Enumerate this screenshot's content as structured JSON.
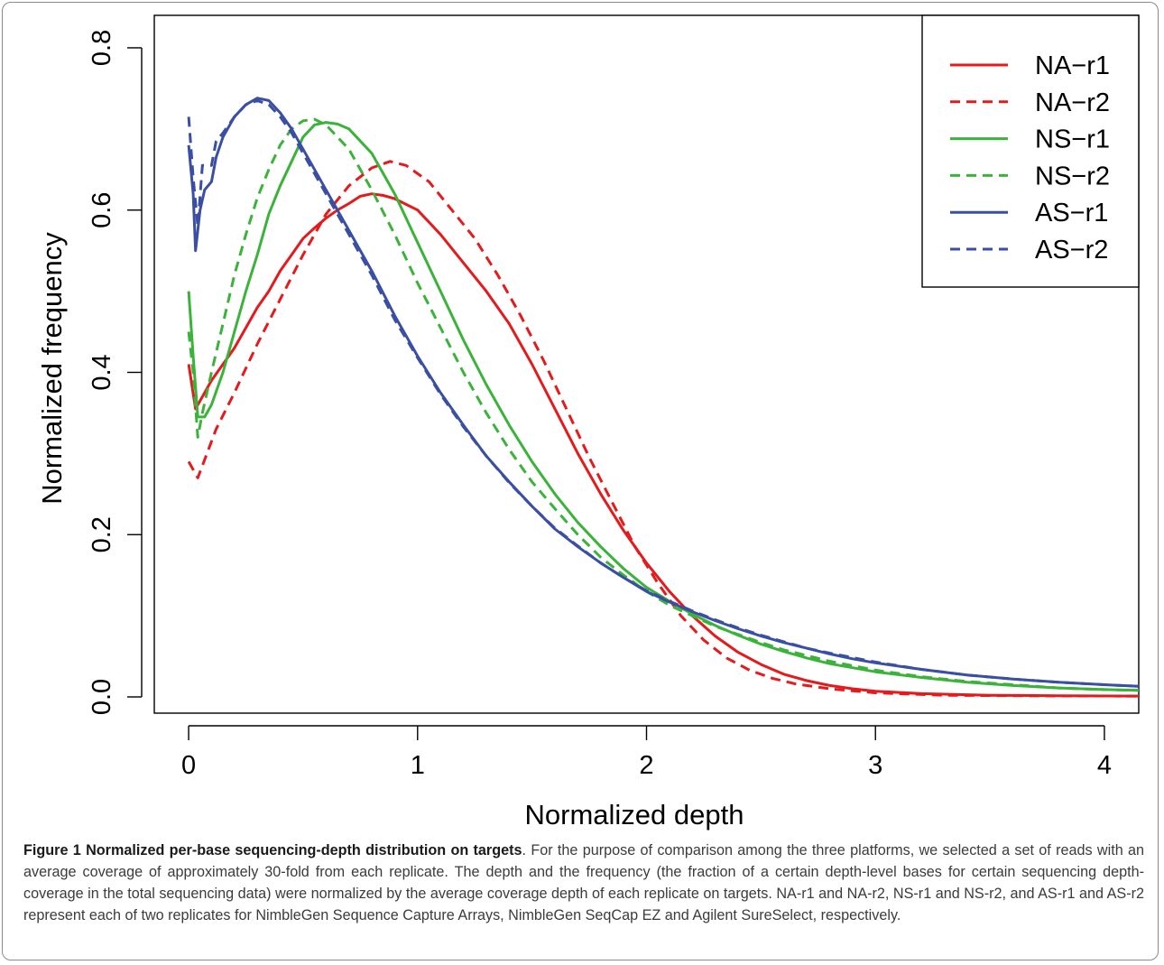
{
  "chart_data": {
    "type": "line",
    "xlabel": "Normalized depth",
    "ylabel": "Normalized frequency",
    "xlim": [
      -0.15,
      4.15
    ],
    "ylim": [
      -0.02,
      0.84
    ],
    "x_ticks": [
      0,
      1,
      2,
      3,
      4
    ],
    "x_tick_labels": [
      "0",
      "1",
      "2",
      "3",
      "4"
    ],
    "y_ticks": [
      0.0,
      0.2,
      0.4,
      0.6,
      0.8
    ],
    "y_tick_labels": [
      "0.0",
      "0.2",
      "0.4",
      "0.6",
      "0.8"
    ],
    "grid": false,
    "legend_position": "top-right",
    "series": [
      {
        "name": "NA−r1",
        "color": "#e41a1c",
        "dash": "solid",
        "points": [
          [
            0,
            0.41
          ],
          [
            0.03,
            0.355
          ],
          [
            0.06,
            0.37
          ],
          [
            0.1,
            0.39
          ],
          [
            0.15,
            0.41
          ],
          [
            0.2,
            0.43
          ],
          [
            0.25,
            0.455
          ],
          [
            0.3,
            0.48
          ],
          [
            0.35,
            0.5
          ],
          [
            0.4,
            0.525
          ],
          [
            0.45,
            0.545
          ],
          [
            0.5,
            0.565
          ],
          [
            0.55,
            0.578
          ],
          [
            0.6,
            0.59
          ],
          [
            0.65,
            0.6
          ],
          [
            0.7,
            0.608
          ],
          [
            0.75,
            0.617
          ],
          [
            0.8,
            0.62
          ],
          [
            0.85,
            0.618
          ],
          [
            0.9,
            0.614
          ],
          [
            1.0,
            0.6
          ],
          [
            1.1,
            0.57
          ],
          [
            1.2,
            0.535
          ],
          [
            1.3,
            0.5
          ],
          [
            1.4,
            0.46
          ],
          [
            1.5,
            0.41
          ],
          [
            1.6,
            0.355
          ],
          [
            1.7,
            0.3
          ],
          [
            1.8,
            0.25
          ],
          [
            1.9,
            0.205
          ],
          [
            2.0,
            0.165
          ],
          [
            2.1,
            0.13
          ],
          [
            2.2,
            0.1
          ],
          [
            2.3,
            0.075
          ],
          [
            2.4,
            0.055
          ],
          [
            2.5,
            0.04
          ],
          [
            2.6,
            0.028
          ],
          [
            2.7,
            0.02
          ],
          [
            2.8,
            0.014
          ],
          [
            2.9,
            0.01
          ],
          [
            3.0,
            0.007
          ],
          [
            3.2,
            0.004
          ],
          [
            3.5,
            0.002
          ],
          [
            3.8,
            0.0015
          ],
          [
            4.15,
            0.001
          ]
        ]
      },
      {
        "name": "NA−r2",
        "color": "#e41a1c",
        "dash": "dashed",
        "points": [
          [
            0,
            0.29
          ],
          [
            0.04,
            0.27
          ],
          [
            0.08,
            0.3
          ],
          [
            0.12,
            0.33
          ],
          [
            0.2,
            0.375
          ],
          [
            0.3,
            0.435
          ],
          [
            0.4,
            0.49
          ],
          [
            0.5,
            0.545
          ],
          [
            0.6,
            0.595
          ],
          [
            0.7,
            0.63
          ],
          [
            0.8,
            0.652
          ],
          [
            0.88,
            0.66
          ],
          [
            0.95,
            0.655
          ],
          [
            1.05,
            0.635
          ],
          [
            1.15,
            0.6
          ],
          [
            1.25,
            0.565
          ],
          [
            1.35,
            0.52
          ],
          [
            1.45,
            0.47
          ],
          [
            1.55,
            0.415
          ],
          [
            1.65,
            0.355
          ],
          [
            1.75,
            0.295
          ],
          [
            1.85,
            0.24
          ],
          [
            1.95,
            0.185
          ],
          [
            2.05,
            0.14
          ],
          [
            2.15,
            0.1
          ],
          [
            2.25,
            0.07
          ],
          [
            2.35,
            0.048
          ],
          [
            2.45,
            0.033
          ],
          [
            2.55,
            0.023
          ],
          [
            2.65,
            0.016
          ],
          [
            2.8,
            0.01
          ],
          [
            3.0,
            0.005
          ],
          [
            3.3,
            0.002
          ],
          [
            3.7,
            0.0012
          ],
          [
            4.15,
            0.001
          ]
        ]
      },
      {
        "name": "NS−r1",
        "color": "#3bb33b",
        "dash": "solid",
        "points": [
          [
            0,
            0.5
          ],
          [
            0.02,
            0.42
          ],
          [
            0.04,
            0.345
          ],
          [
            0.07,
            0.345
          ],
          [
            0.1,
            0.36
          ],
          [
            0.15,
            0.4
          ],
          [
            0.2,
            0.45
          ],
          [
            0.25,
            0.5
          ],
          [
            0.3,
            0.545
          ],
          [
            0.35,
            0.595
          ],
          [
            0.4,
            0.63
          ],
          [
            0.45,
            0.66
          ],
          [
            0.5,
            0.69
          ],
          [
            0.55,
            0.705
          ],
          [
            0.6,
            0.708
          ],
          [
            0.65,
            0.706
          ],
          [
            0.7,
            0.7
          ],
          [
            0.8,
            0.67
          ],
          [
            0.9,
            0.62
          ],
          [
            1.0,
            0.56
          ],
          [
            1.1,
            0.5
          ],
          [
            1.2,
            0.44
          ],
          [
            1.3,
            0.385
          ],
          [
            1.4,
            0.335
          ],
          [
            1.5,
            0.29
          ],
          [
            1.6,
            0.25
          ],
          [
            1.7,
            0.215
          ],
          [
            1.8,
            0.185
          ],
          [
            1.9,
            0.158
          ],
          [
            2.0,
            0.135
          ],
          [
            2.1,
            0.118
          ],
          [
            2.2,
            0.102
          ],
          [
            2.3,
            0.088
          ],
          [
            2.4,
            0.076
          ],
          [
            2.5,
            0.065
          ],
          [
            2.6,
            0.056
          ],
          [
            2.7,
            0.048
          ],
          [
            2.8,
            0.041
          ],
          [
            2.9,
            0.036
          ],
          [
            3.0,
            0.031
          ],
          [
            3.2,
            0.024
          ],
          [
            3.4,
            0.018
          ],
          [
            3.6,
            0.014
          ],
          [
            3.8,
            0.011
          ],
          [
            4.0,
            0.009
          ],
          [
            4.15,
            0.008
          ]
        ]
      },
      {
        "name": "NS−r2",
        "color": "#3bb33b",
        "dash": "dashed",
        "points": [
          [
            0,
            0.45
          ],
          [
            0.02,
            0.4
          ],
          [
            0.04,
            0.32
          ],
          [
            0.06,
            0.35
          ],
          [
            0.1,
            0.4
          ],
          [
            0.15,
            0.46
          ],
          [
            0.2,
            0.52
          ],
          [
            0.25,
            0.57
          ],
          [
            0.3,
            0.615
          ],
          [
            0.35,
            0.65
          ],
          [
            0.4,
            0.68
          ],
          [
            0.45,
            0.7
          ],
          [
            0.5,
            0.71
          ],
          [
            0.55,
            0.712
          ],
          [
            0.6,
            0.705
          ],
          [
            0.7,
            0.675
          ],
          [
            0.8,
            0.625
          ],
          [
            0.9,
            0.57
          ],
          [
            1.0,
            0.51
          ],
          [
            1.1,
            0.455
          ],
          [
            1.2,
            0.4
          ],
          [
            1.3,
            0.35
          ],
          [
            1.4,
            0.305
          ],
          [
            1.5,
            0.265
          ],
          [
            1.6,
            0.232
          ],
          [
            1.7,
            0.2
          ],
          [
            1.8,
            0.172
          ],
          [
            1.9,
            0.15
          ],
          [
            2.0,
            0.13
          ],
          [
            2.1,
            0.113
          ],
          [
            2.2,
            0.1
          ],
          [
            2.3,
            0.087
          ],
          [
            2.4,
            0.077
          ],
          [
            2.5,
            0.067
          ],
          [
            2.6,
            0.058
          ],
          [
            2.8,
            0.044
          ],
          [
            3.0,
            0.033
          ],
          [
            3.2,
            0.025
          ],
          [
            3.4,
            0.019
          ],
          [
            3.6,
            0.015
          ],
          [
            3.8,
            0.011
          ],
          [
            4.0,
            0.009
          ],
          [
            4.15,
            0.008
          ]
        ]
      },
      {
        "name": "AS−r1",
        "color": "#3a4fa3",
        "dash": "solid",
        "points": [
          [
            0,
            0.68
          ],
          [
            0.02,
            0.62
          ],
          [
            0.03,
            0.55
          ],
          [
            0.05,
            0.6
          ],
          [
            0.07,
            0.625
          ],
          [
            0.1,
            0.635
          ],
          [
            0.12,
            0.665
          ],
          [
            0.15,
            0.69
          ],
          [
            0.2,
            0.715
          ],
          [
            0.25,
            0.73
          ],
          [
            0.3,
            0.738
          ],
          [
            0.35,
            0.735
          ],
          [
            0.4,
            0.72
          ],
          [
            0.45,
            0.7
          ],
          [
            0.5,
            0.675
          ],
          [
            0.55,
            0.65
          ],
          [
            0.6,
            0.625
          ],
          [
            0.7,
            0.575
          ],
          [
            0.8,
            0.525
          ],
          [
            0.9,
            0.47
          ],
          [
            1.0,
            0.42
          ],
          [
            1.1,
            0.375
          ],
          [
            1.2,
            0.335
          ],
          [
            1.3,
            0.297
          ],
          [
            1.4,
            0.265
          ],
          [
            1.5,
            0.235
          ],
          [
            1.6,
            0.207
          ],
          [
            1.7,
            0.185
          ],
          [
            1.8,
            0.165
          ],
          [
            1.9,
            0.147
          ],
          [
            2.0,
            0.13
          ],
          [
            2.1,
            0.117
          ],
          [
            2.2,
            0.105
          ],
          [
            2.3,
            0.094
          ],
          [
            2.4,
            0.084
          ],
          [
            2.5,
            0.075
          ],
          [
            2.6,
            0.067
          ],
          [
            2.7,
            0.06
          ],
          [
            2.8,
            0.053
          ],
          [
            2.9,
            0.047
          ],
          [
            3.0,
            0.042
          ],
          [
            3.2,
            0.034
          ],
          [
            3.4,
            0.027
          ],
          [
            3.6,
            0.022
          ],
          [
            3.8,
            0.018
          ],
          [
            4.0,
            0.015
          ],
          [
            4.15,
            0.013
          ]
        ]
      },
      {
        "name": "AS−r2",
        "color": "#3a4fa3",
        "dash": "dashed",
        "points": [
          [
            0,
            0.715
          ],
          [
            0.02,
            0.64
          ],
          [
            0.04,
            0.58
          ],
          [
            0.06,
            0.655
          ],
          [
            0.1,
            0.655
          ],
          [
            0.12,
            0.685
          ],
          [
            0.15,
            0.695
          ],
          [
            0.2,
            0.715
          ],
          [
            0.25,
            0.73
          ],
          [
            0.3,
            0.735
          ],
          [
            0.35,
            0.73
          ],
          [
            0.4,
            0.715
          ],
          [
            0.45,
            0.695
          ],
          [
            0.5,
            0.67
          ],
          [
            0.55,
            0.645
          ],
          [
            0.6,
            0.62
          ],
          [
            0.7,
            0.57
          ],
          [
            0.8,
            0.52
          ],
          [
            0.9,
            0.465
          ],
          [
            1.0,
            0.418
          ],
          [
            1.1,
            0.373
          ],
          [
            1.2,
            0.333
          ],
          [
            1.3,
            0.297
          ],
          [
            1.4,
            0.264
          ],
          [
            1.5,
            0.235
          ],
          [
            1.6,
            0.208
          ],
          [
            1.7,
            0.186
          ],
          [
            1.8,
            0.165
          ],
          [
            1.9,
            0.147
          ],
          [
            2.0,
            0.131
          ],
          [
            2.1,
            0.118
          ],
          [
            2.2,
            0.106
          ],
          [
            2.3,
            0.095
          ],
          [
            2.4,
            0.085
          ],
          [
            2.5,
            0.076
          ],
          [
            2.6,
            0.068
          ],
          [
            2.7,
            0.06
          ],
          [
            2.8,
            0.054
          ],
          [
            3.0,
            0.043
          ],
          [
            3.2,
            0.034
          ],
          [
            3.4,
            0.027
          ],
          [
            3.6,
            0.022
          ],
          [
            3.8,
            0.018
          ],
          [
            4.0,
            0.015
          ],
          [
            4.15,
            0.013
          ]
        ]
      }
    ]
  },
  "caption": {
    "title": "Figure 1 Normalized per-base sequencing-depth distribution on targets",
    "text": ". For the purpose of comparison among the three platforms, we selected a set of reads with an average coverage of approximately 30-fold from each replicate. The depth and the frequency (the fraction of a certain depth-level bases for certain sequencing depth-coverage in the total sequencing data) were normalized by the average coverage depth of each replicate on targets. NA-r1 and NA-r2, NS-r1 and NS-r2, and AS-r1 and AS-r2 represent each of two replicates for NimbleGen Sequence Capture Arrays, NimbleGen SeqCap EZ and Agilent SureSelect, respectively."
  }
}
